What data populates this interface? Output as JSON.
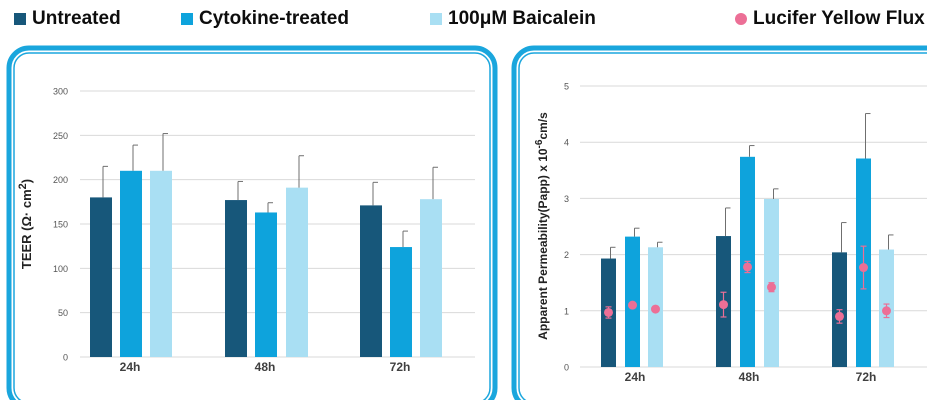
{
  "legend": {
    "items": [
      {
        "label": "Untreated",
        "color": "#17577a",
        "marker": "square"
      },
      {
        "label": "Cytokine-treated",
        "color": "#0ea3dc",
        "marker": "square"
      },
      {
        "label": "100μM Baicalein",
        "color": "#a9dff3",
        "marker": "square"
      },
      {
        "label": "Lucifer Yellow Flux",
        "color": "#ec6f96",
        "marker": "circle"
      }
    ]
  },
  "colors": {
    "frame": "#1aa6dd",
    "grid": "#d9d9d9",
    "axis_text": "#555555",
    "category_text": "#404040",
    "error_bar": "#6f6f6f"
  },
  "chart_data": [
    {
      "type": "bar",
      "ylabel_main": "TEER (Ω· cm",
      "ylabel_sup": "2",
      "ylabel_tail": ")",
      "categories": [
        "24h",
        "48h",
        "72h"
      ],
      "ylim": [
        0,
        300
      ],
      "yticks": [
        0,
        50,
        100,
        150,
        200,
        250,
        300
      ],
      "grid": true,
      "series": [
        {
          "name": "Untreated",
          "color": "#17577a",
          "values": [
            180,
            177,
            171
          ],
          "errors": [
            35,
            21,
            26
          ]
        },
        {
          "name": "Cytokine-treated",
          "color": "#0ea3dc",
          "values": [
            210,
            163,
            124
          ],
          "errors": [
            29,
            11,
            18
          ]
        },
        {
          "name": "100μM Baicalein",
          "color": "#a9dff3",
          "values": [
            210,
            191,
            178
          ],
          "errors": [
            42,
            36,
            36
          ]
        }
      ]
    },
    {
      "type": "bar",
      "ylabel_main": "Apparent Permeability(Papp) x 10",
      "ylabel_sup": "-6",
      "ylabel_tail": "cm/s",
      "categories": [
        "24h",
        "48h",
        "72h"
      ],
      "ylim": [
        0,
        5
      ],
      "yticks": [
        0,
        1,
        2,
        3,
        4,
        5
      ],
      "grid": true,
      "series": [
        {
          "name": "Untreated",
          "color": "#17577a",
          "values": [
            1.93,
            2.33,
            2.04
          ],
          "errors": [
            0.2,
            0.5,
            0.53
          ]
        },
        {
          "name": "Cytokine-treated",
          "color": "#0ea3dc",
          "values": [
            2.32,
            3.74,
            3.71
          ],
          "errors": [
            0.15,
            0.2,
            0.8
          ]
        },
        {
          "name": "100μM Baicalein",
          "color": "#a9dff3",
          "values": [
            2.13,
            2.99,
            2.09
          ],
          "errors": [
            0.09,
            0.18,
            0.26
          ]
        }
      ],
      "overlay": {
        "name": "Lucifer Yellow Flux",
        "color": "#ec6f96",
        "points": [
          {
            "values": [
              0.97,
              1.1,
              1.03
            ],
            "errors": [
              0.1,
              0.04,
              0.02
            ]
          },
          {
            "values": [
              1.11,
              1.78,
              1.42
            ],
            "errors": [
              0.22,
              0.1,
              0.08
            ]
          },
          {
            "values": [
              0.9,
              1.77,
              1.0
            ],
            "errors": [
              0.12,
              0.38,
              0.12
            ]
          }
        ]
      }
    }
  ]
}
